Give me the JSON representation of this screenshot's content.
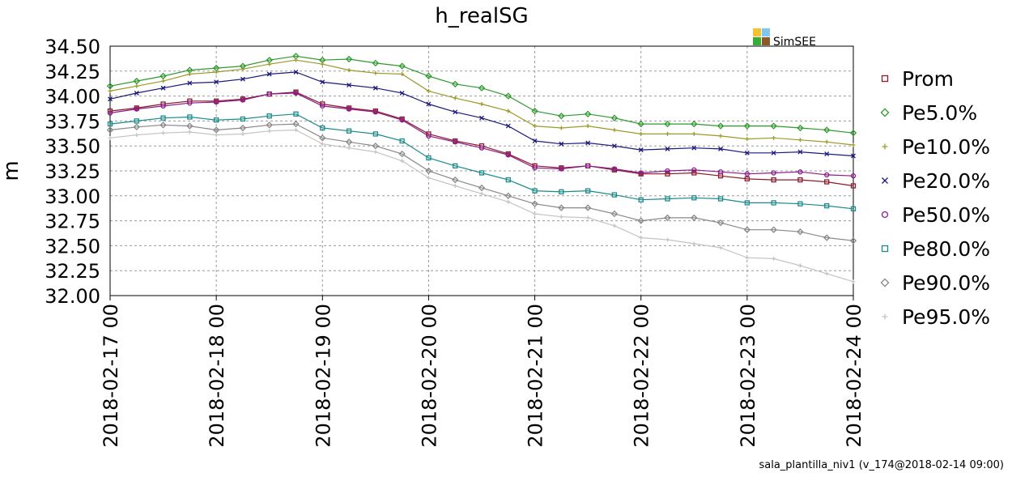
{
  "chart_data": {
    "type": "line",
    "title": "h_realSG",
    "y_label": "m",
    "logo_text": "SimSEE",
    "footer": "sala_plantilla_niv1 (v_174@2018-02-14 09:00)",
    "x": [
      "2018-02-17 00",
      "2018-02-17 06",
      "2018-02-17 12",
      "2018-02-17 18",
      "2018-02-18 00",
      "2018-02-18 06",
      "2018-02-18 12",
      "2018-02-18 18",
      "2018-02-19 00",
      "2018-02-19 06",
      "2018-02-19 12",
      "2018-02-19 18",
      "2018-02-20 00",
      "2018-02-20 06",
      "2018-02-20 12",
      "2018-02-20 18",
      "2018-02-21 00",
      "2018-02-21 06",
      "2018-02-21 12",
      "2018-02-21 18",
      "2018-02-22 00",
      "2018-02-22 06",
      "2018-02-22 12",
      "2018-02-22 18",
      "2018-02-23 00",
      "2018-02-23 06",
      "2018-02-23 12",
      "2018-02-23 18",
      "2018-02-24 00"
    ],
    "series": [
      {
        "name": "Prom",
        "color": "#8b1a2a",
        "marker": "square",
        "values": [
          33.85,
          33.88,
          33.92,
          33.95,
          33.95,
          33.97,
          34.02,
          34.04,
          33.92,
          33.88,
          33.85,
          33.77,
          33.62,
          33.55,
          33.5,
          33.42,
          33.3,
          33.28,
          33.3,
          33.26,
          33.22,
          33.22,
          33.23,
          33.2,
          33.17,
          33.16,
          33.16,
          33.14,
          33.1
        ]
      },
      {
        "name": "Pe5.0%",
        "color": "#2e9a2e",
        "marker": "diamond",
        "values": [
          34.1,
          34.15,
          34.2,
          34.26,
          34.28,
          34.3,
          34.36,
          34.4,
          34.36,
          34.37,
          34.33,
          34.3,
          34.2,
          34.12,
          34.08,
          34.0,
          33.85,
          33.8,
          33.82,
          33.78,
          33.72,
          33.72,
          33.72,
          33.7,
          33.7,
          33.7,
          33.68,
          33.66,
          33.63
        ]
      },
      {
        "name": "Pe10.0%",
        "color": "#9a9a2a",
        "marker": "plus",
        "values": [
          34.05,
          34.1,
          34.15,
          34.22,
          34.24,
          34.27,
          34.32,
          34.36,
          34.32,
          34.26,
          34.23,
          34.22,
          34.05,
          33.98,
          33.92,
          33.85,
          33.7,
          33.68,
          33.7,
          33.66,
          33.62,
          33.62,
          33.62,
          33.6,
          33.57,
          33.58,
          33.56,
          33.54,
          33.51
        ]
      },
      {
        "name": "Pe20.0%",
        "color": "#1a1a7a",
        "marker": "cross",
        "values": [
          33.97,
          34.03,
          34.08,
          34.13,
          34.14,
          34.17,
          34.22,
          34.24,
          34.14,
          34.11,
          34.08,
          34.03,
          33.92,
          33.84,
          33.78,
          33.7,
          33.55,
          33.52,
          33.53,
          33.5,
          33.46,
          33.47,
          33.48,
          33.47,
          33.43,
          33.43,
          33.44,
          33.42,
          33.4
        ]
      },
      {
        "name": "Pe50.0%",
        "color": "#8b1a8b",
        "marker": "circle",
        "values": [
          33.83,
          33.87,
          33.9,
          33.93,
          33.94,
          33.96,
          34.02,
          34.03,
          33.9,
          33.87,
          33.84,
          33.76,
          33.6,
          33.54,
          33.48,
          33.41,
          33.28,
          33.27,
          33.3,
          33.27,
          33.23,
          33.25,
          33.26,
          33.24,
          33.22,
          33.23,
          33.24,
          33.21,
          33.2
        ]
      },
      {
        "name": "Pe80.0%",
        "color": "#1a8a8a",
        "marker": "square",
        "values": [
          33.72,
          33.75,
          33.78,
          33.79,
          33.76,
          33.77,
          33.8,
          33.82,
          33.68,
          33.65,
          33.62,
          33.55,
          33.38,
          33.3,
          33.23,
          33.16,
          33.05,
          33.04,
          33.05,
          33.01,
          32.96,
          32.97,
          32.98,
          32.97,
          32.93,
          32.93,
          32.92,
          32.9,
          32.87
        ]
      },
      {
        "name": "Pe90.0%",
        "color": "#888888",
        "marker": "diamond",
        "values": [
          33.66,
          33.69,
          33.71,
          33.7,
          33.66,
          33.68,
          33.71,
          33.72,
          33.58,
          33.54,
          33.5,
          33.42,
          33.25,
          33.16,
          33.08,
          33.0,
          32.92,
          32.88,
          32.88,
          32.82,
          32.75,
          32.78,
          32.78,
          32.73,
          32.66,
          32.66,
          32.64,
          32.58,
          32.55
        ]
      },
      {
        "name": "Pe95.0%",
        "color": "#c4c4c4",
        "marker": "plus",
        "values": [
          33.58,
          33.61,
          33.63,
          33.64,
          33.61,
          33.62,
          33.65,
          33.66,
          33.52,
          33.48,
          33.44,
          33.35,
          33.18,
          33.1,
          33.02,
          32.94,
          32.82,
          32.79,
          32.78,
          32.7,
          32.58,
          32.56,
          32.52,
          32.48,
          32.38,
          32.37,
          32.3,
          32.22,
          32.14
        ]
      }
    ],
    "ylim": [
      32.0,
      34.5
    ],
    "yticks": [
      {
        "value": 32.0,
        "label": "32.00"
      },
      {
        "value": 32.25,
        "label": "32.25"
      },
      {
        "value": 32.5,
        "label": "32.50"
      },
      {
        "value": 32.75,
        "label": "32.75"
      },
      {
        "value": 33.0,
        "label": "33.00"
      },
      {
        "value": 33.25,
        "label": "33.25"
      },
      {
        "value": 33.5,
        "label": "33.50"
      },
      {
        "value": 33.75,
        "label": "33.75"
      },
      {
        "value": 34.0,
        "label": "34.00"
      },
      {
        "value": 34.25,
        "label": "34.25"
      },
      {
        "value": 34.5,
        "label": "34.50"
      }
    ],
    "x_tick_every": 4,
    "grid": true,
    "legend": "right"
  }
}
